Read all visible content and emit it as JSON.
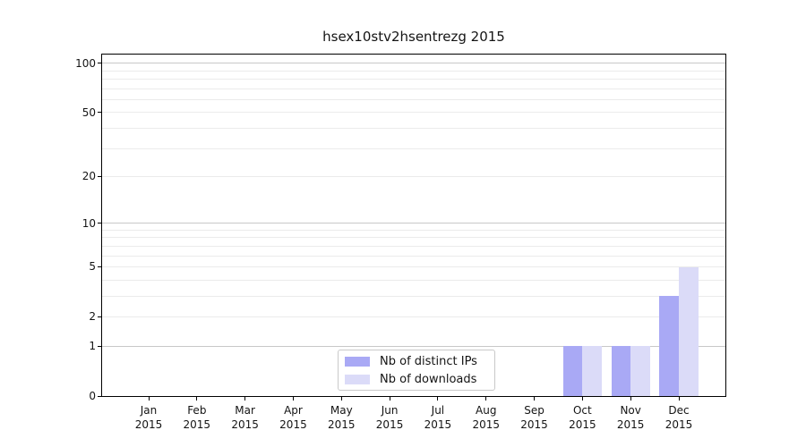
{
  "chart_data": {
    "type": "bar",
    "title": "hsex10stv2hsentrezg 2015",
    "categories": [
      "Jan",
      "Feb",
      "Mar",
      "Apr",
      "May",
      "Jun",
      "Jul",
      "Aug",
      "Sep",
      "Oct",
      "Nov",
      "Dec"
    ],
    "year_label": "2015",
    "series": [
      {
        "name": "Nb of distinct IPs",
        "color": "#a9a9f5",
        "values": [
          0,
          0,
          0,
          0,
          0,
          0,
          0,
          0,
          0,
          1,
          1,
          3
        ]
      },
      {
        "name": "Nb of downloads",
        "color": "#dbdbf8",
        "values": [
          0,
          0,
          0,
          0,
          0,
          0,
          0,
          0,
          0,
          1,
          1,
          5
        ]
      }
    ],
    "xlabel": "",
    "ylabel": "",
    "yscale": "log1p",
    "ylim": [
      0,
      113
    ],
    "yticks": [
      0,
      1,
      2,
      5,
      10,
      20,
      50,
      100
    ],
    "grid_major": [
      1,
      10,
      100
    ],
    "grid_minor": [
      2,
      3,
      4,
      5,
      6,
      7,
      8,
      9,
      20,
      30,
      40,
      50,
      60,
      70,
      80,
      90
    ],
    "grid": "on",
    "legend_position": "lower center",
    "colors": {
      "spine": "#000000",
      "grid_major": "#c8c8c8",
      "grid_minor": "#ebebeb",
      "text": "#141414",
      "background": "#ffffff"
    }
  }
}
